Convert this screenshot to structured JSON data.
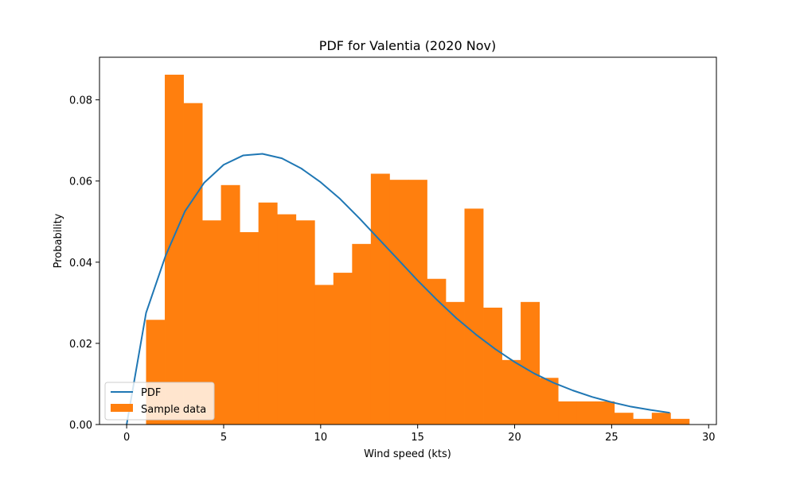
{
  "chart_data": {
    "type": "bar",
    "title": "PDF for Valentia (2020 Nov)",
    "xlabel": "Wind speed (kts)",
    "ylabel": "Probability",
    "xlim": [
      -1.4,
      30.4
    ],
    "ylim": [
      0,
      0.0905
    ],
    "xticks": [
      0,
      5,
      10,
      15,
      20,
      25,
      30
    ],
    "xtick_labels": [
      "0",
      "5",
      "10",
      "15",
      "20",
      "25",
      "30"
    ],
    "yticks": [
      0,
      0.02,
      0.04,
      0.06,
      0.08
    ],
    "ytick_labels": [
      "0.00",
      "0.02",
      "0.04",
      "0.06",
      "0.08"
    ],
    "grid": false,
    "legend_position": "lower-left",
    "colors": {
      "pdf": "#1f77b4",
      "sample": "#ff7f0e"
    },
    "series": [
      {
        "name": "PDF",
        "kind": "line",
        "x": [
          0,
          1,
          2,
          3,
          4,
          5,
          6,
          7,
          8,
          9,
          10,
          11,
          12,
          13,
          14,
          15,
          16,
          17,
          18,
          19,
          20,
          21,
          22,
          23,
          24,
          25,
          26,
          27,
          28
        ],
        "y": [
          0.0,
          0.0275,
          0.0415,
          0.0525,
          0.0596,
          0.064,
          0.0663,
          0.0667,
          0.0656,
          0.0631,
          0.0597,
          0.0556,
          0.0508,
          0.0457,
          0.0406,
          0.0355,
          0.0307,
          0.0262,
          0.0222,
          0.0186,
          0.0154,
          0.0126,
          0.0103,
          0.0084,
          0.0068,
          0.0055,
          0.0044,
          0.0036,
          0.0029
        ]
      },
      {
        "name": "Sample data",
        "kind": "histogram",
        "bin_edges": [
          1.0,
          1.966,
          2.931,
          3.897,
          4.862,
          5.828,
          6.793,
          7.759,
          8.724,
          9.69,
          10.655,
          11.621,
          12.586,
          13.552,
          14.517,
          15.483,
          16.448,
          17.414,
          18.379,
          19.345,
          20.31,
          21.276,
          22.241,
          23.207,
          24.172,
          25.138,
          26.103,
          27.069,
          28.034,
          29.0
        ],
        "values": [
          0.0258,
          0.0862,
          0.0792,
          0.0503,
          0.059,
          0.0474,
          0.0547,
          0.0518,
          0.0503,
          0.0344,
          0.0374,
          0.0445,
          0.0618,
          0.0603,
          0.0603,
          0.0359,
          0.0302,
          0.0532,
          0.0288,
          0.0159,
          0.0302,
          0.0115,
          0.0057,
          0.0057,
          0.0057,
          0.0029,
          0.0014,
          0.0029,
          0.0014
        ]
      }
    ]
  }
}
